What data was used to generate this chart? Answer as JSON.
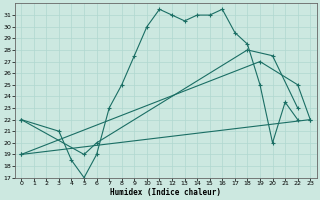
{
  "xlabel": "Humidex (Indice chaleur)",
  "background_color": "#cce8e0",
  "grid_color": "#b0d8d0",
  "line_color": "#1a6e64",
  "xlim": [
    -0.5,
    23.5
  ],
  "ylim": [
    17,
    32
  ],
  "xticks": [
    0,
    1,
    2,
    3,
    4,
    5,
    6,
    7,
    8,
    9,
    10,
    11,
    12,
    13,
    14,
    15,
    16,
    17,
    18,
    19,
    20,
    21,
    22,
    23
  ],
  "yticks": [
    17,
    18,
    19,
    20,
    21,
    22,
    23,
    24,
    25,
    26,
    27,
    28,
    29,
    30,
    31
  ],
  "series": [
    {
      "x": [
        0,
        3,
        4,
        5,
        6,
        7,
        8,
        9,
        10,
        11,
        12,
        13,
        14,
        15,
        16,
        17,
        18,
        19,
        20,
        21,
        22
      ],
      "y": [
        22,
        21,
        18.5,
        17,
        19,
        23,
        25,
        27.5,
        30,
        31.5,
        31,
        30.5,
        31,
        31,
        31.5,
        29.5,
        28.5,
        25,
        20,
        23.5,
        22
      ]
    },
    {
      "x": [
        0,
        23
      ],
      "y": [
        19,
        22
      ]
    },
    {
      "x": [
        0,
        19,
        22,
        23
      ],
      "y": [
        19,
        27,
        25,
        22
      ]
    },
    {
      "x": [
        0,
        5,
        6,
        18,
        20,
        22
      ],
      "y": [
        22,
        19,
        20,
        28,
        27.5,
        23
      ]
    }
  ]
}
